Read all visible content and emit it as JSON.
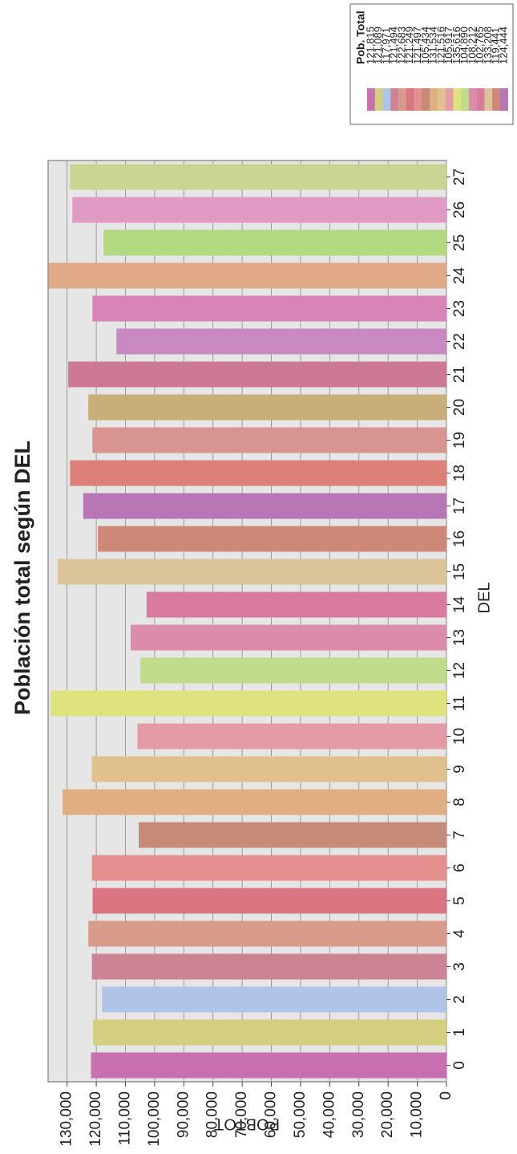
{
  "chart_data": {
    "type": "bar",
    "title": "Población total según DEL",
    "x_label": "DEL",
    "y_label": "POBTOT",
    "categories": [
      "0",
      "1",
      "2",
      "3",
      "4",
      "5",
      "6",
      "7",
      "8",
      "9",
      "10",
      "11",
      "12",
      "13",
      "14",
      "15",
      "16",
      "17",
      "18",
      "19",
      "20",
      "21",
      "22",
      "23",
      "24",
      "25",
      "26",
      "27"
    ],
    "values": [
      121815,
      121089,
      117971,
      121494,
      122683,
      121249,
      121497,
      105434,
      131534,
      121516,
      105917,
      135616,
      104890,
      108212,
      102765,
      133208,
      119441,
      124444,
      129000,
      121300,
      122700,
      129600,
      113100,
      121300,
      136400,
      117500,
      128200,
      129000
    ],
    "value_labels": [
      "121,815",
      "121,089",
      "117,971",
      "121,494",
      "122,683",
      "121,249",
      "121,497",
      "105,434",
      "131,534",
      "121,516",
      "105,917",
      "135,616",
      "104,890",
      "108,212",
      "102,765",
      "133,208",
      "119,441",
      "124,444",
      null,
      null,
      null,
      null,
      null,
      null,
      null,
      null,
      null,
      null
    ],
    "colors": [
      "#c86fb0",
      "#d4cf7e",
      "#aec5e8",
      "#cc8494",
      "#d89a8a",
      "#d97682",
      "#e58f8f",
      "#c58a78",
      "#e0ae80",
      "#e0c08c",
      "#e59ba5",
      "#dfe37e",
      "#bfdc8a",
      "#dc8cab",
      "#d97a9f",
      "#dcc49a",
      "#ce8878",
      "#b976b5",
      "#dc8078",
      "#d8948e",
      "#c8ae78",
      "#ce7898",
      "#c88ac0",
      "#d884b6",
      "#e0aa88",
      "#b2d880",
      "#e09ac4",
      "#ccd494"
    ],
    "legend_title": "Pob. Total",
    "ylim": [
      0,
      136500
    ],
    "yticks": [
      0,
      {
        "value": 10000,
        "label": "10,000"
      },
      {
        "value": 20000,
        "label": "20,000"
      },
      {
        "value": 30000,
        "label": "30,000"
      },
      {
        "value": 40000,
        "label": "40,000"
      },
      {
        "value": 50000,
        "label": "50,000"
      },
      {
        "value": 60000,
        "label": "60,000"
      },
      {
        "value": 70000,
        "label": "70,000"
      },
      {
        "value": 80000,
        "label": "80,000"
      },
      {
        "value": 90000,
        "label": "90,000"
      },
      {
        "value": 100000,
        "label": "100,000"
      },
      {
        "value": 110000,
        "label": "110,000"
      },
      {
        "value": 120000,
        "label": "120,000"
      },
      {
        "value": 130000,
        "label": "130,000"
      }
    ],
    "grid": true
  }
}
